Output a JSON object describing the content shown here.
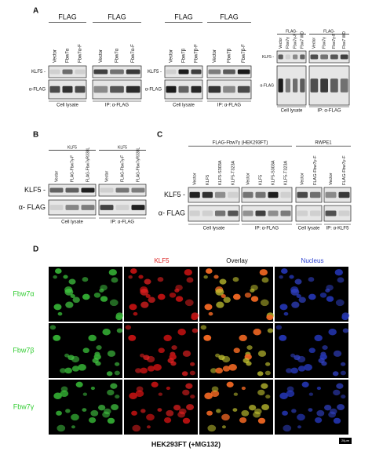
{
  "figure": {
    "panels": [
      {
        "label": "A",
        "blots": [
          {
            "headers": [
              "FLAG",
              "FLAG"
            ],
            "lanes": [
              "Vector",
              "Fbw7α",
              "Fbw7α-F",
              "Vector",
              "Fbw7α",
              "Fbw7α-F"
            ],
            "rows": [
              "KLF5 -",
              "α-FLAG"
            ],
            "footers": [
              "Cell lysate",
              "IP: α-FLAG"
            ]
          },
          {
            "headers": [
              "FLAG",
              "FLAG"
            ],
            "lanes": [
              "Vector",
              "Fbw7β",
              "Fbw7β-F",
              "Vector",
              "Fbw7β",
              "Fbw7β-F"
            ],
            "rows": [
              "KLF5 -",
              "α-FLAG"
            ],
            "footers": [
              "Cell lysate",
              "IP: α-FLAG"
            ]
          },
          {
            "headers": [
              "FLAG-",
              "FLAG-"
            ],
            "lanes": [
              "Vector",
              "Fbw7γ",
              "Fbw7γ-F",
              "Fbw7 WD",
              "Vector",
              "Fbw7γ",
              "Fbw7γ-F",
              "Fbw7 WD"
            ],
            "rows": [
              "KLF5 -",
              "α-FLAG"
            ],
            "footers": [
              "Cell lysate",
              "IP: α-FLAG"
            ]
          }
        ]
      },
      {
        "label": "B",
        "blots": [
          {
            "headers": [
              "KLF5",
              "KLF5"
            ],
            "lanes": [
              "Vector",
              "FLAG-Fbw7γ-F",
              "FLAG-Fbw7γR338L",
              "Vector",
              "FLAG-Fbw7γ-F",
              "FLAG-Fbw7γR338L"
            ],
            "rows": [
              "KLF5 -",
              "α- FLAG"
            ],
            "footers": [
              "Cell lysate",
              "IP: α-FLAG"
            ]
          }
        ]
      },
      {
        "label": "C",
        "blots": [
          {
            "headers": [
              "FLAG-Fbw7γ (HEK293FT)",
              "RWPE1"
            ],
            "lanes": [
              "Vector",
              "KLF5",
              "KLF5-S303A",
              "KLF5-T323A",
              "Vector",
              "KLF5",
              "KLF5-S303A",
              "KLF5-T323A",
              "Vector",
              "FLAG-Fbw7γ-F",
              "Vector",
              "FLAG-Fbw7γ-F"
            ],
            "rows": [
              "KLF5 -",
              "α- FLAG"
            ],
            "footers": [
              "Cell lysate",
              "IP: α-FLAG",
              "Cell lysate",
              "IP: α-KLF5"
            ]
          }
        ]
      },
      {
        "label": "D",
        "columns": [
          "KLF5",
          "Overlay",
          "Nucleus"
        ],
        "rows": [
          "Fbw7α",
          "Fbw7β",
          "Fbw7γ"
        ],
        "caption": "HEK293FT (+MG132)",
        "scale_bar": "20μm"
      }
    ]
  }
}
